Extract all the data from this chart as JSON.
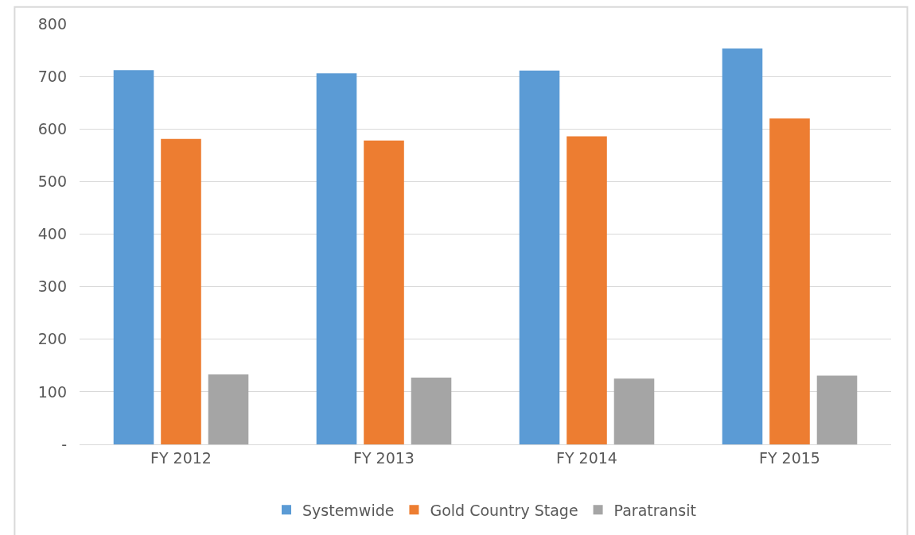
{
  "chart_data": {
    "type": "bar",
    "categories": [
      "FY 2012",
      "FY 2013",
      "FY 2014",
      "FY 2015"
    ],
    "series": [
      {
        "name": "Systemwide",
        "color": "#5b9bd5",
        "values": [
          712,
          706,
          711,
          753
        ]
      },
      {
        "name": "Gold Country Stage",
        "color": "#ed7d31",
        "values": [
          581,
          578,
          586,
          620
        ]
      },
      {
        "name": "Paratransit",
        "color": "#a5a5a5",
        "values": [
          133,
          127,
          125,
          131
        ]
      }
    ],
    "ylim": [
      0,
      800
    ],
    "yticks": [
      {
        "value": 0,
        "label": "-"
      },
      100,
      200,
      300,
      400,
      500,
      600,
      700,
      800
    ],
    "grid": "y",
    "legend": "bottom"
  }
}
